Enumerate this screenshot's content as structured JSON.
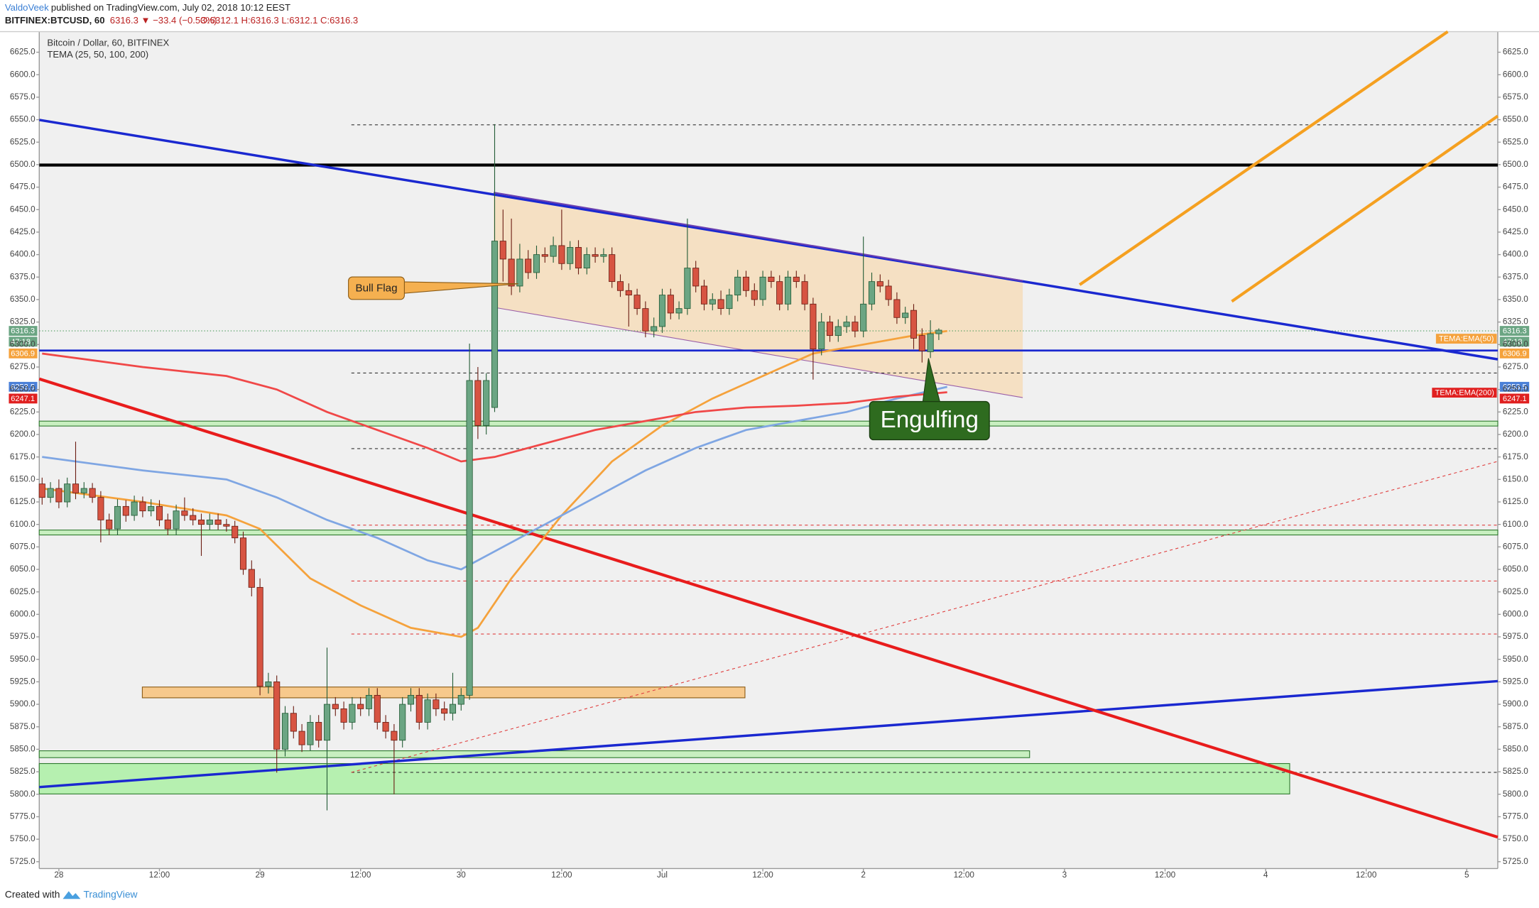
{
  "header": {
    "author": "ValdoVeek",
    "published": "published on TradingView.com, July 02, 2018 10:12 EEST",
    "symbol": "BITFINEX:BTCUSD, 60",
    "change": "6316.3 ▼ −33.4 (−0.53%)",
    "ohlc": "O:6312.1 H:6316.3 L:6312.1 C:6316.3"
  },
  "footer": {
    "created": "Created with",
    "brand": "TradingView"
  },
  "chart_data": {
    "type": "candlestick",
    "title": "Bitcoin / Dollar, 60, BITFINEX",
    "subtitle": "TEMA (25, 50, 100, 200)",
    "annotations": {
      "flag": "Bull Flag",
      "pattern": "Engulfing"
    },
    "badges": {
      "price": "6316.3",
      "countdown": "47:18",
      "ema50": "6306.9",
      "ema100": "6253.5",
      "ema200": "6247.1"
    },
    "up_color": "#6ba583",
    "down_color": "#d75442",
    "xlim": [
      -2.34,
      171.7
    ],
    "ylim": [
      5717.4,
      6647.9
    ],
    "xticks": [
      {
        "value": 0,
        "label": "28"
      },
      {
        "value": 12,
        "label": "12:00"
      },
      {
        "value": 24,
        "label": "29"
      },
      {
        "value": 36,
        "label": "12:00"
      },
      {
        "value": 48,
        "label": "30"
      },
      {
        "value": 60,
        "label": "12:00"
      },
      {
        "value": 72,
        "label": "Jul"
      },
      {
        "value": 84,
        "label": "12:00"
      },
      {
        "value": 96,
        "label": "2"
      },
      {
        "value": 108,
        "label": "12:00"
      },
      {
        "value": 120,
        "label": "3"
      },
      {
        "value": 132,
        "label": "12:00"
      },
      {
        "value": 144,
        "label": "4"
      },
      {
        "value": 156,
        "label": "12:00"
      },
      {
        "value": 168,
        "label": "5"
      }
    ],
    "yticks": [
      {
        "value": 5725,
        "label": "5725.0"
      },
      {
        "value": 5750,
        "label": "5750.0"
      },
      {
        "value": 5775,
        "label": "5775.0"
      },
      {
        "value": 5800,
        "label": "5800.0"
      },
      {
        "value": 5825,
        "label": "5825.0"
      },
      {
        "value": 5850,
        "label": "5850.0"
      },
      {
        "value": 5875,
        "label": "5875.0"
      },
      {
        "value": 5900,
        "label": "5900.0"
      },
      {
        "value": 5925,
        "label": "5925.0"
      },
      {
        "value": 5950,
        "label": "5950.0"
      },
      {
        "value": 5975,
        "label": "5975.0"
      },
      {
        "value": 6000,
        "label": "6000.0"
      },
      {
        "value": 6025,
        "label": "6025.0"
      },
      {
        "value": 6050,
        "label": "6050.0"
      },
      {
        "value": 6075,
        "label": "6075.0"
      },
      {
        "value": 6100,
        "label": "6100.0"
      },
      {
        "value": 6125,
        "label": "6125.0"
      },
      {
        "value": 6150,
        "label": "6150.0"
      },
      {
        "value": 6175,
        "label": "6175.0"
      },
      {
        "value": 6200,
        "label": "6200.0"
      },
      {
        "value": 6225,
        "label": "6225.0"
      },
      {
        "value": 6250,
        "label": "6250.0"
      },
      {
        "value": 6275,
        "label": "6275.0"
      },
      {
        "value": 6300,
        "label": "6300.0"
      },
      {
        "value": 6325,
        "label": "6325.0"
      },
      {
        "value": 6350,
        "label": "6350.0"
      },
      {
        "value": 6375,
        "label": "6375.0"
      },
      {
        "value": 6400,
        "label": "6400.0"
      },
      {
        "value": 6425,
        "label": "6425.0"
      },
      {
        "value": 6450,
        "label": "6450.0"
      },
      {
        "value": 6475,
        "label": "6475.0"
      },
      {
        "value": 6500,
        "label": "6500.0"
      },
      {
        "value": 6525,
        "label": "6525.0"
      },
      {
        "value": 6550,
        "label": "6550.0"
      },
      {
        "value": 6575,
        "label": "6575.0"
      },
      {
        "value": 6600,
        "label": "6600.0"
      },
      {
        "value": 6625,
        "label": "6625.0"
      }
    ],
    "x": [
      -2,
      -1,
      0,
      1,
      2,
      3,
      4,
      5,
      6,
      7,
      8,
      9,
      10,
      11,
      12,
      13,
      14,
      15,
      16,
      17,
      18,
      19,
      20,
      21,
      22,
      23,
      24,
      25,
      26,
      27,
      28,
      29,
      30,
      31,
      32,
      33,
      34,
      35,
      36,
      37,
      38,
      39,
      40,
      41,
      42,
      43,
      44,
      45,
      46,
      47,
      48,
      49,
      50,
      51,
      52,
      53,
      54,
      55,
      56,
      57,
      58,
      59,
      60,
      61,
      62,
      63,
      64,
      65,
      66,
      67,
      68,
      69,
      70,
      71,
      72,
      73,
      74,
      75,
      76,
      77,
      78,
      79,
      80,
      81,
      82,
      83,
      84,
      85,
      86,
      87,
      88,
      89,
      90,
      91,
      92,
      93,
      94,
      95,
      96,
      97,
      98,
      99,
      100,
      101,
      102,
      103,
      104,
      105
    ],
    "open": [
      6145,
      6130,
      6140,
      6125,
      6145,
      6135,
      6140,
      6130,
      6105,
      6095,
      6120,
      6110,
      6125,
      6115,
      6120,
      6105,
      6095,
      6115,
      6110,
      6105,
      6100,
      6105,
      6100,
      6098,
      6085,
      6050,
      6030,
      5920,
      5925,
      5850,
      5890,
      5870,
      5855,
      5880,
      5860,
      5900,
      5895,
      5880,
      5900,
      5895,
      5910,
      5880,
      5870,
      5860,
      5900,
      5910,
      5880,
      5905,
      5895,
      5890,
      5900,
      5910,
      6260,
      6210,
      6230,
      6415,
      6395,
      6365,
      6395,
      6380,
      6400,
      6398,
      6410,
      6390,
      6408,
      6385,
      6400,
      6398,
      6400,
      6370,
      6360,
      6355,
      6340,
      6315,
      6320,
      6355,
      6335,
      6340,
      6385,
      6365,
      6345,
      6350,
      6340,
      6355,
      6375,
      6360,
      6350,
      6375,
      6370,
      6345,
      6375,
      6370,
      6345,
      6295,
      6325,
      6310,
      6320,
      6325,
      6315,
      6345,
      6370,
      6365,
      6350,
      6330,
      6338,
      6310,
      6292,
      6312
    ],
    "high": [
      6152,
      6147,
      6150,
      6152,
      6192,
      6147,
      6146,
      6137,
      6112,
      6128,
      6127,
      6132,
      6131,
      6128,
      6127,
      6112,
      6122,
      6130,
      6118,
      6112,
      6112,
      6112,
      6106,
      6104,
      6092,
      6060,
      6040,
      5935,
      5932,
      5898,
      5898,
      5878,
      5888,
      5888,
      5963,
      5908,
      5903,
      5908,
      5908,
      5918,
      5918,
      5888,
      5878,
      5908,
      5918,
      5918,
      5912,
      5912,
      5903,
      5935,
      5918,
      6301,
      6275,
      6268,
      6545,
      6450,
      6440,
      6412,
      6405,
      6410,
      6408,
      6420,
      6450,
      6415,
      6416,
      6408,
      6408,
      6407,
      6408,
      6378,
      6368,
      6362,
      6348,
      6330,
      6362,
      6362,
      6348,
      6440,
      6393,
      6372,
      6357,
      6360,
      6362,
      6383,
      6382,
      6368,
      6382,
      6382,
      6377,
      6382,
      6382,
      6378,
      6352,
      6335,
      6332,
      6328,
      6332,
      6332,
      6420,
      6380,
      6378,
      6372,
      6358,
      6342,
      6345,
      6318,
      6327,
      6318
    ],
    "low": [
      6122,
      6124,
      6118,
      6119,
      6128,
      6129,
      6124,
      6080,
      6088,
      6088,
      6103,
      6104,
      6108,
      6109,
      6098,
      6088,
      6088,
      6104,
      6099,
      6065,
      6094,
      6094,
      6092,
      6079,
      6044,
      6020,
      5910,
      5912,
      5824,
      5842,
      5862,
      5847,
      5848,
      5852,
      5782,
      5887,
      5872,
      5872,
      5887,
      5887,
      5872,
      5862,
      5800,
      5852,
      5892,
      5872,
      5872,
      5887,
      5882,
      5882,
      5893,
      5905,
      6195,
      6200,
      6225,
      6370,
      6355,
      6358,
      6373,
      6373,
      6391,
      6391,
      6383,
      6383,
      6378,
      6378,
      6391,
      6391,
      6363,
      6353,
      6320,
      6333,
      6308,
      6308,
      6313,
      6328,
      6328,
      6333,
      6358,
      6338,
      6338,
      6333,
      6333,
      6348,
      6353,
      6343,
      6343,
      6363,
      6338,
      6338,
      6363,
      6338,
      6261,
      6288,
      6303,
      6303,
      6313,
      6308,
      6308,
      6338,
      6358,
      6343,
      6323,
      6323,
      6295,
      6280,
      6285,
      6305
    ],
    "close": [
      6130,
      6140,
      6125,
      6145,
      6135,
      6140,
      6130,
      6105,
      6095,
      6120,
      6110,
      6125,
      6115,
      6120,
      6105,
      6095,
      6115,
      6110,
      6105,
      6100,
      6105,
      6100,
      6098,
      6085,
      6050,
      6030,
      5920,
      5925,
      5850,
      5890,
      5870,
      5855,
      5880,
      5860,
      5900,
      5895,
      5880,
      5900,
      5895,
      5910,
      5880,
      5870,
      5860,
      5900,
      5910,
      5880,
      5905,
      5895,
      5890,
      5900,
      5910,
      6260,
      6210,
      6260,
      6415,
      6395,
      6365,
      6395,
      6380,
      6400,
      6398,
      6410,
      6390,
      6408,
      6385,
      6400,
      6398,
      6400,
      6370,
      6360,
      6355,
      6340,
      6315,
      6320,
      6355,
      6335,
      6340,
      6385,
      6365,
      6345,
      6350,
      6340,
      6355,
      6375,
      6360,
      6350,
      6375,
      6370,
      6345,
      6375,
      6370,
      6345,
      6295,
      6325,
      6310,
      6320,
      6325,
      6315,
      6345,
      6370,
      6365,
      6350,
      6330,
      6335,
      6307,
      6293,
      6312,
      6316
    ],
    "series": [
      {
        "name": "TEMA:EMA(50)",
        "color": "#f5a23c",
        "x": [
          -2,
          10,
          20,
          24,
          30,
          36,
          42,
          48,
          50,
          54,
          60,
          66,
          72,
          78,
          84,
          90,
          96,
          102,
          106
        ],
        "values": [
          6140,
          6125,
          6110,
          6095,
          6040,
          6010,
          5985,
          5975,
          5985,
          6040,
          6110,
          6170,
          6210,
          6240,
          6265,
          6290,
          6300,
          6310,
          6315
        ]
      },
      {
        "color": "#7fa6e3",
        "x": [
          -2,
          10,
          20,
          26,
          32,
          38,
          44,
          48,
          52,
          58,
          64,
          70,
          76,
          82,
          88,
          94,
          100,
          106
        ],
        "values": [
          6175,
          6160,
          6150,
          6130,
          6105,
          6085,
          6060,
          6050,
          6070,
          6100,
          6130,
          6160,
          6185,
          6205,
          6215,
          6225,
          6240,
          6253
        ]
      },
      {
        "name": "TEMA:EMA(200)",
        "color": "#f04848",
        "x": [
          -2,
          10,
          20,
          26,
          32,
          38,
          44,
          48,
          52,
          58,
          64,
          70,
          76,
          82,
          88,
          94,
          100,
          106
        ],
        "values": [
          6290,
          6275,
          6265,
          6250,
          6225,
          6205,
          6185,
          6170,
          6175,
          6190,
          6205,
          6215,
          6225,
          6230,
          6232,
          6235,
          6242,
          6247
        ]
      }
    ]
  }
}
